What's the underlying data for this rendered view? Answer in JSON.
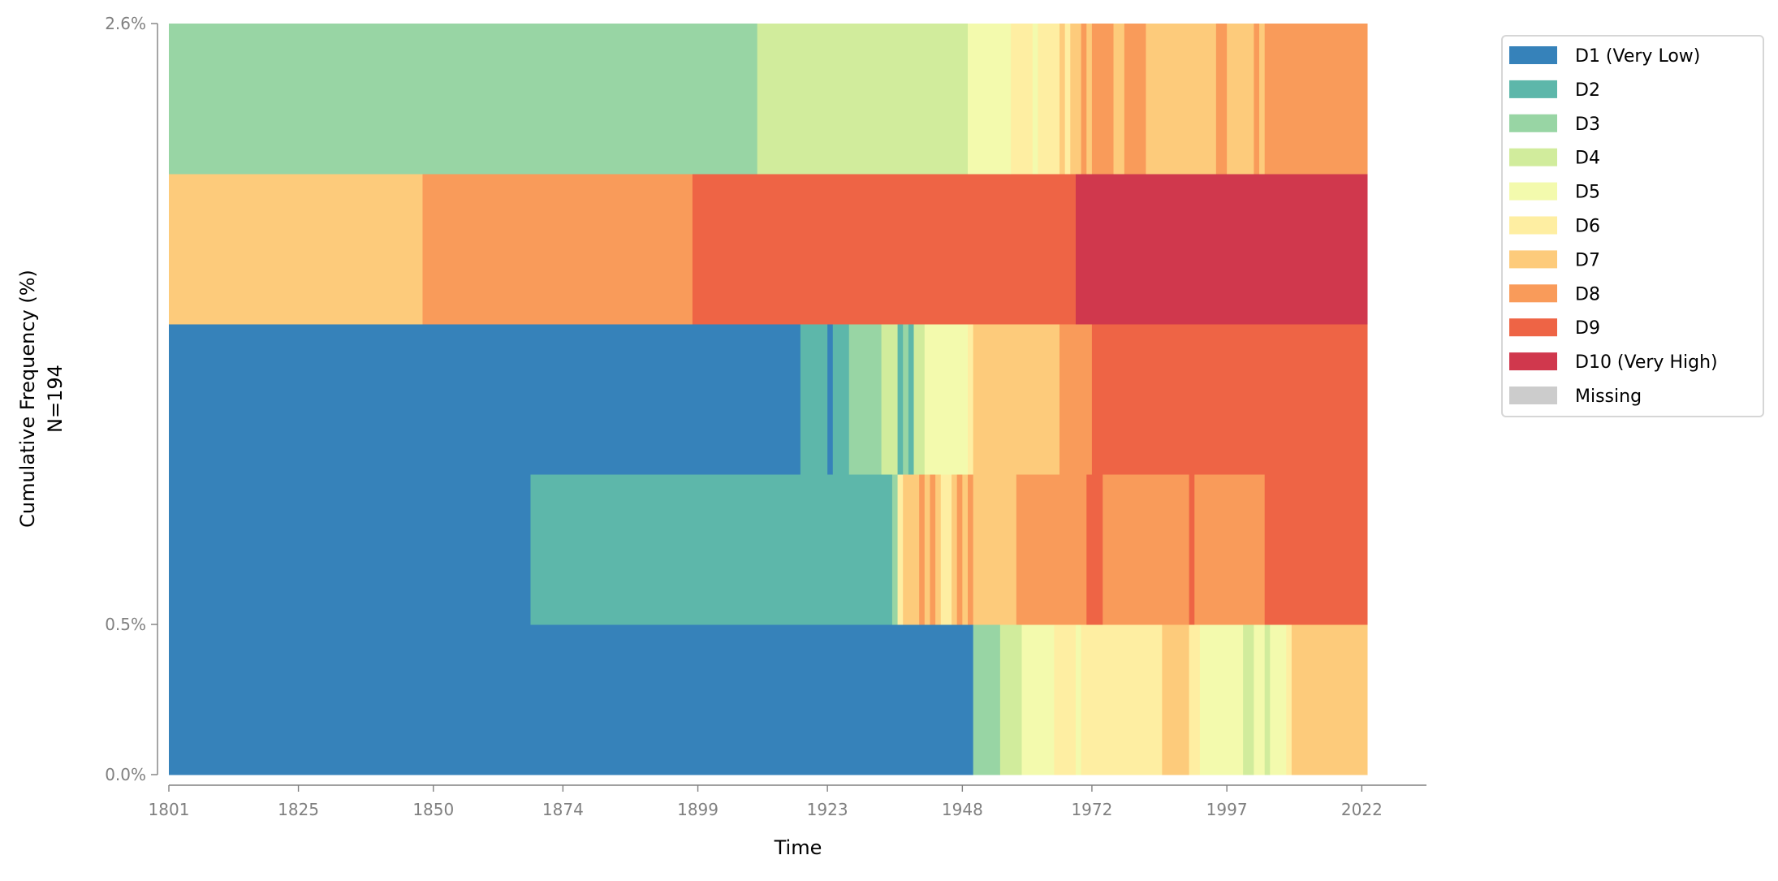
{
  "chart_data": {
    "type": "bar",
    "subtype": "sequence-index-plot",
    "xlabel": "Time",
    "ylabel": "Cumulative Frequency (%)",
    "ylabel_sub": "N=194",
    "xlim": [
      1801,
      2023
    ],
    "x_ticks": [
      "1801",
      "1825",
      "1850",
      "1874",
      "1899",
      "1923",
      "1948",
      "1972",
      "1997",
      "2022"
    ],
    "x_tick_values": [
      1801,
      1825,
      1850,
      1874,
      1899,
      1923,
      1948,
      1972,
      1997,
      2022
    ],
    "y_ticks": [
      {
        "label": "0.0%",
        "row_boundary": 0
      },
      {
        "label": "0.5%",
        "row_boundary": 1
      },
      {
        "label": "2.6%",
        "row_boundary": 5
      }
    ],
    "legend_position": "outside-right",
    "states": [
      {
        "key": "D1",
        "label": "D1 (Very Low)",
        "color": "#3682ba"
      },
      {
        "key": "D2",
        "label": "D2",
        "color": "#5db7aa"
      },
      {
        "key": "D3",
        "label": "D3",
        "color": "#98d5a4"
      },
      {
        "key": "D4",
        "label": "D4",
        "color": "#d1ec9c"
      },
      {
        "key": "D5",
        "label": "D5",
        "color": "#f3faad"
      },
      {
        "key": "D6",
        "label": "D6",
        "color": "#feeea2"
      },
      {
        "key": "D7",
        "label": "D7",
        "color": "#fdcb7b"
      },
      {
        "key": "D8",
        "label": "D8",
        "color": "#f99b5a"
      },
      {
        "key": "D9",
        "label": "D9",
        "color": "#ee6445"
      },
      {
        "key": "D10",
        "label": "D10 (Very High)",
        "color": "#d0384d"
      },
      {
        "key": "Missing",
        "label": "Missing",
        "color": "#cccccc"
      }
    ],
    "sequences_bottom_to_top": [
      [
        [
          "D1",
          1801,
          1950
        ],
        [
          "D3",
          1950,
          1955
        ],
        [
          "D4",
          1955,
          1959
        ],
        [
          "D5",
          1959,
          1965
        ],
        [
          "D6",
          1965,
          1969
        ],
        [
          "D5",
          1969,
          1970
        ],
        [
          "D6",
          1970,
          1985
        ],
        [
          "D7",
          1985,
          1990
        ],
        [
          "D6",
          1990,
          1992
        ],
        [
          "D5",
          1992,
          2000
        ],
        [
          "D4",
          2000,
          2002
        ],
        [
          "D5",
          2002,
          2004
        ],
        [
          "D4",
          2004,
          2005
        ],
        [
          "D5",
          2005,
          2008
        ],
        [
          "D6",
          2008,
          2009
        ],
        [
          "D7",
          2009,
          2023
        ]
      ],
      [
        [
          "D1",
          1801,
          1868
        ],
        [
          "D2",
          1868,
          1935
        ],
        [
          "D3",
          1935,
          1936
        ],
        [
          "D6",
          1936,
          1937
        ],
        [
          "D7",
          1937,
          1940
        ],
        [
          "D8",
          1940,
          1941
        ],
        [
          "D7",
          1941,
          1942
        ],
        [
          "D8",
          1942,
          1943
        ],
        [
          "D7",
          1943,
          1944
        ],
        [
          "D6",
          1944,
          1946
        ],
        [
          "D7",
          1946,
          1947
        ],
        [
          "D8",
          1947,
          1948
        ],
        [
          "D7",
          1948,
          1949
        ],
        [
          "D8",
          1949,
          1950
        ],
        [
          "D7",
          1950,
          1958
        ],
        [
          "D8",
          1958,
          1971
        ],
        [
          "D9",
          1971,
          1974
        ],
        [
          "D8",
          1974,
          1990
        ],
        [
          "D9",
          1990,
          1991
        ],
        [
          "D8",
          1991,
          2004
        ],
        [
          "D9",
          2004,
          2023
        ]
      ],
      [
        [
          "D1",
          1801,
          1918
        ],
        [
          "D2",
          1918,
          1923
        ],
        [
          "D1",
          1923,
          1924
        ],
        [
          "D2",
          1924,
          1927
        ],
        [
          "D3",
          1927,
          1933
        ],
        [
          "D4",
          1933,
          1936
        ],
        [
          "D2",
          1936,
          1937
        ],
        [
          "D3",
          1937,
          1938
        ],
        [
          "D2",
          1938,
          1939
        ],
        [
          "D4",
          1939,
          1941
        ],
        [
          "D5",
          1941,
          1949
        ],
        [
          "D6",
          1949,
          1950
        ],
        [
          "D7",
          1950,
          1966
        ],
        [
          "D8",
          1966,
          1972
        ],
        [
          "D9",
          1972,
          2023
        ]
      ],
      [
        [
          "D7",
          1801,
          1848
        ],
        [
          "D8",
          1848,
          1898
        ],
        [
          "D9",
          1898,
          1969
        ],
        [
          "D10",
          1969,
          2023
        ]
      ],
      [
        [
          "D3",
          1801,
          1910
        ],
        [
          "D4",
          1910,
          1949
        ],
        [
          "D5",
          1949,
          1957
        ],
        [
          "D6",
          1957,
          1961
        ],
        [
          "D5",
          1961,
          1962
        ],
        [
          "D6",
          1962,
          1966
        ],
        [
          "D7",
          1966,
          1967
        ],
        [
          "D6",
          1967,
          1968
        ],
        [
          "D7",
          1968,
          1970
        ],
        [
          "D8",
          1970,
          1971
        ],
        [
          "D7",
          1971,
          1972
        ],
        [
          "D8",
          1972,
          1976
        ],
        [
          "D7",
          1976,
          1978
        ],
        [
          "D8",
          1978,
          1982
        ],
        [
          "D7",
          1982,
          1995
        ],
        [
          "D8",
          1995,
          1997
        ],
        [
          "D7",
          1997,
          2002
        ],
        [
          "D8",
          2002,
          2003
        ],
        [
          "D7",
          2003,
          2004
        ],
        [
          "D8",
          2004,
          2023
        ]
      ]
    ]
  }
}
